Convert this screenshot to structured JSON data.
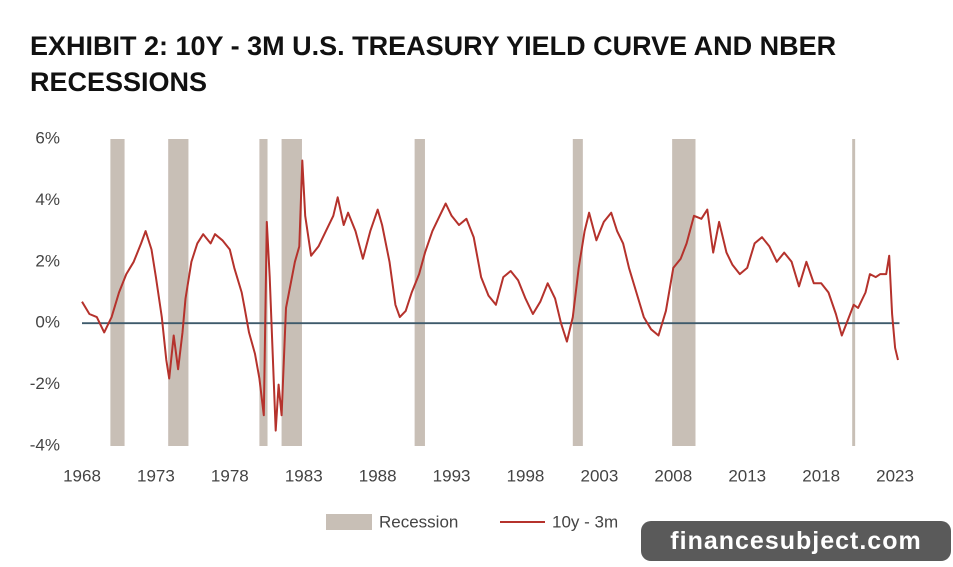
{
  "chart_data": {
    "type": "line",
    "title": "EXHIBIT 2: 10Y - 3M U.S. TREASURY YIELD CURVE AND NBER RECESSIONS",
    "xlim": [
      1968,
      2023.3
    ],
    "xticks": [
      1968,
      1973,
      1978,
      1983,
      1988,
      1993,
      1998,
      2003,
      2008,
      2013,
      2018,
      2023
    ],
    "ylim": [
      -4,
      6
    ],
    "yticks": [
      {
        "value": -4,
        "label": "-4%"
      },
      {
        "value": -2,
        "label": "-2%"
      },
      {
        "value": 0,
        "label": "0%"
      },
      {
        "value": 2,
        "label": "2%"
      },
      {
        "value": 4,
        "label": "4%"
      },
      {
        "value": 6,
        "label": "6%"
      }
    ],
    "grid": false,
    "reference_line": 0,
    "recession_name": "Recession",
    "recession_color": "#c8bfb6",
    "recessions": [
      {
        "start": 1969.92,
        "end": 1970.88
      },
      {
        "start": 1973.83,
        "end": 1975.2
      },
      {
        "start": 1980.0,
        "end": 1980.55
      },
      {
        "start": 1981.5,
        "end": 1982.88
      },
      {
        "start": 1990.5,
        "end": 1991.2
      },
      {
        "start": 2001.2,
        "end": 2001.88
      },
      {
        "start": 2007.92,
        "end": 2009.5
      },
      {
        "start": 2020.1,
        "end": 2020.3
      }
    ],
    "series": [
      {
        "name": "10y - 3m",
        "color": "#b5322c",
        "x": [
          1968.0,
          1968.5,
          1969.0,
          1969.5,
          1970.0,
          1970.5,
          1971.0,
          1971.5,
          1972.0,
          1972.3,
          1972.7,
          1973.0,
          1973.4,
          1973.7,
          1973.9,
          1974.2,
          1974.5,
          1974.8,
          1975.0,
          1975.4,
          1975.8,
          1976.2,
          1976.7,
          1977.0,
          1977.5,
          1978.0,
          1978.3,
          1978.8,
          1979.0,
          1979.3,
          1979.7,
          1980.0,
          1980.3,
          1980.5,
          1980.7,
          1980.9,
          1981.1,
          1981.3,
          1981.5,
          1981.8,
          1982.0,
          1982.4,
          1982.7,
          1982.9,
          1983.1,
          1983.5,
          1984.0,
          1984.5,
          1985.0,
          1985.3,
          1985.7,
          1986.0,
          1986.5,
          1987.0,
          1987.5,
          1988.0,
          1988.3,
          1988.8,
          1989.2,
          1989.5,
          1989.9,
          1990.3,
          1990.8,
          1991.2,
          1991.7,
          1992.2,
          1992.6,
          1993.0,
          1993.5,
          1994.0,
          1994.5,
          1995.0,
          1995.5,
          1996.0,
          1996.5,
          1997.0,
          1997.5,
          1998.0,
          1998.5,
          1999.0,
          1999.5,
          2000.0,
          2000.4,
          2000.8,
          2001.2,
          2001.6,
          2002.0,
          2002.3,
          2002.8,
          2003.3,
          2003.8,
          2004.2,
          2004.6,
          2005.0,
          2005.5,
          2006.0,
          2006.5,
          2007.0,
          2007.5,
          2008.0,
          2008.5,
          2008.9,
          2009.4,
          2009.9,
          2010.3,
          2010.7,
          2011.1,
          2011.6,
          2012.0,
          2012.5,
          2013.0,
          2013.5,
          2014.0,
          2014.5,
          2015.0,
          2015.5,
          2016.0,
          2016.5,
          2017.0,
          2017.5,
          2018.0,
          2018.5,
          2019.0,
          2019.4,
          2019.8,
          2020.2,
          2020.5,
          2021.0,
          2021.3,
          2021.7,
          2022.0,
          2022.4,
          2022.6,
          2022.8,
          2023.0,
          2023.2
        ],
        "values": [
          0.7,
          0.3,
          0.2,
          -0.3,
          0.2,
          1.0,
          1.6,
          2.0,
          2.6,
          3.0,
          2.4,
          1.5,
          0.2,
          -1.2,
          -1.8,
          -0.4,
          -1.5,
          -0.3,
          0.8,
          2.0,
          2.6,
          2.9,
          2.6,
          2.9,
          2.7,
          2.4,
          1.8,
          1.0,
          0.5,
          -0.3,
          -1.0,
          -1.8,
          -3.0,
          3.3,
          1.5,
          -1.0,
          -3.5,
          -2.0,
          -3.0,
          0.5,
          1.0,
          2.0,
          2.5,
          5.3,
          3.5,
          2.2,
          2.5,
          3.0,
          3.5,
          4.1,
          3.2,
          3.6,
          3.0,
          2.1,
          3.0,
          3.7,
          3.2,
          2.0,
          0.6,
          0.2,
          0.4,
          1.0,
          1.6,
          2.3,
          3.0,
          3.5,
          3.9,
          3.5,
          3.2,
          3.4,
          2.8,
          1.5,
          0.9,
          0.6,
          1.5,
          1.7,
          1.4,
          0.8,
          0.3,
          0.7,
          1.3,
          0.8,
          0.0,
          -0.6,
          0.2,
          1.8,
          3.0,
          3.6,
          2.7,
          3.3,
          3.6,
          3.0,
          2.6,
          1.8,
          1.0,
          0.2,
          -0.2,
          -0.4,
          0.4,
          1.8,
          2.1,
          2.6,
          3.5,
          3.4,
          3.7,
          2.3,
          3.3,
          2.3,
          1.9,
          1.6,
          1.8,
          2.6,
          2.8,
          2.5,
          2.0,
          2.3,
          2.0,
          1.2,
          2.0,
          1.3,
          1.3,
          1.0,
          0.3,
          -0.4,
          0.1,
          0.6,
          0.5,
          1.0,
          1.6,
          1.5,
          1.6,
          1.6,
          2.2,
          0.3,
          -0.8,
          -1.2
        ]
      }
    ],
    "watermark": "financesubject.com"
  }
}
